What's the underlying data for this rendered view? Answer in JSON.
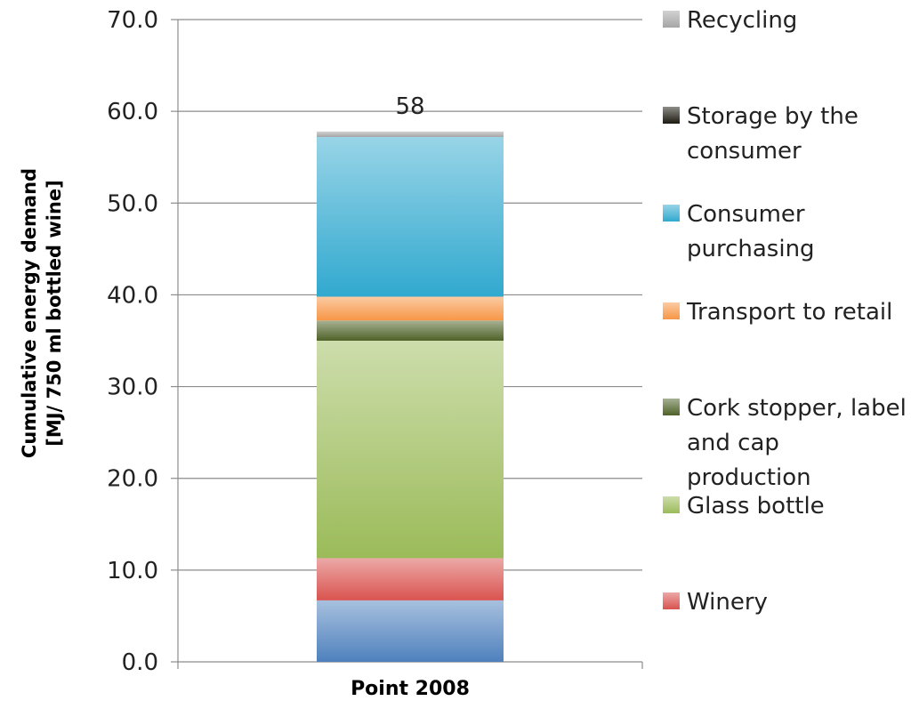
{
  "chart_data": {
    "type": "bar",
    "stacked": true,
    "categories": [
      "Point 2008"
    ],
    "ylabel": "Cumulative energy demand [MJ/ 750 ml bottled wine]",
    "ylim": [
      0,
      70
    ],
    "yticks": [
      "0.0",
      "10.0",
      "20.0",
      "30.0",
      "40.0",
      "50.0",
      "60.0",
      "70.0"
    ],
    "grid": true,
    "legend_position": "right",
    "total_label": "58",
    "series": [
      {
        "values": [
          6.7
        ],
        "color": "#4f81bd"
      },
      {
        "name": "Winery",
        "values": [
          4.6
        ],
        "color": "#d9534f"
      },
      {
        "name": "Glass bottle",
        "values": [
          23.7
        ],
        "color": "#9bbb59"
      },
      {
        "name": "Cork stopper, label and cap production",
        "values": [
          2.2
        ],
        "color": "#4f6228"
      },
      {
        "name": "Transport to retail",
        "values": [
          2.6
        ],
        "color": "#f79646"
      },
      {
        "name": "Consumer purchasing",
        "values": [
          17.4
        ],
        "color": "#31a9cf"
      },
      {
        "name": "Storage by the consumer",
        "values": [
          0.0
        ],
        "color": "#1d1b10"
      },
      {
        "name": "Recycling",
        "values": [
          0.6
        ],
        "color": "#a5a5a5"
      }
    ]
  }
}
